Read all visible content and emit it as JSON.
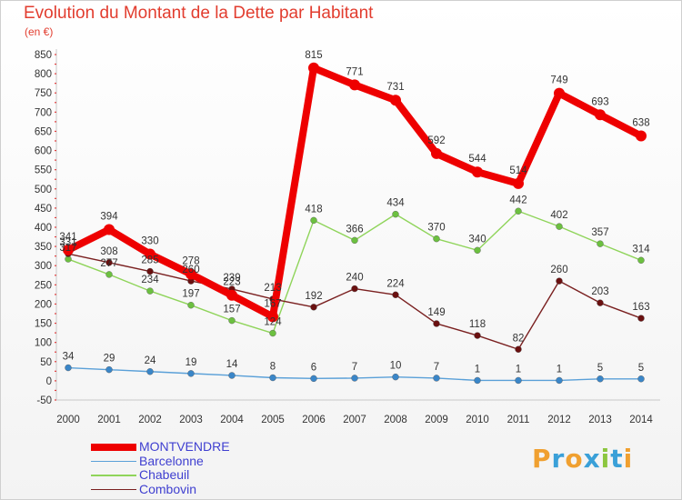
{
  "title": "Evolution du Montant de la Dette par Habitant",
  "subtitle": "(en €)",
  "logo": [
    "P",
    "r",
    "o",
    "x",
    "i",
    "t",
    "i"
  ],
  "logo_colors": [
    "#f0a030",
    "#3aa0d8",
    "#f0a030",
    "#3aa0d8",
    "#8cc63f",
    "#3aa0d8",
    "#f0a030"
  ],
  "chart_data": {
    "type": "line",
    "x": [
      "2000",
      "2001",
      "2002",
      "2003",
      "2004",
      "2005",
      "2006",
      "2007",
      "2008",
      "2009",
      "2010",
      "2011",
      "2012",
      "2013",
      "2014"
    ],
    "ylim": [
      -50,
      850
    ],
    "yticks": [
      "-50",
      "0",
      "50",
      "100",
      "150",
      "200",
      "250",
      "300",
      "350",
      "400",
      "450",
      "500",
      "550",
      "600",
      "650",
      "700",
      "750",
      "800",
      "850"
    ],
    "grid": false,
    "legend_position": "bottom-left",
    "series": [
      {
        "name": "MONTVENDRE",
        "color": "#ee0000",
        "point_color": "#ee0000",
        "values": [
          341,
          394,
          330,
          278,
          223,
          167,
          815,
          771,
          731,
          592,
          544,
          514,
          749,
          693,
          638
        ],
        "labels": [
          "341",
          "394",
          "330",
          "278",
          "223",
          "167",
          "815",
          "771",
          "731",
          "592",
          "544",
          "514",
          "749",
          "693",
          "638"
        ]
      },
      {
        "name": "Barcelonne",
        "color": "#5aa0d8",
        "point_color": "#3a86c8",
        "values": [
          34,
          29,
          24,
          19,
          14,
          8,
          6,
          7,
          10,
          7,
          1,
          1,
          1,
          5,
          5
        ],
        "labels": [
          "34",
          "29",
          "24",
          "19",
          "14",
          "8",
          "6",
          "7",
          "10",
          "7",
          "1",
          "1",
          "1",
          "5",
          "5"
        ]
      },
      {
        "name": "Chabeuil",
        "color": "#8fd45a",
        "point_color": "#6cc040",
        "values": [
          317,
          277,
          234,
          197,
          157,
          124,
          418,
          366,
          434,
          370,
          340,
          442,
          402,
          357,
          314
        ],
        "labels": [
          "317",
          "277",
          "234",
          "197",
          "157",
          "124",
          "418",
          "366",
          "434",
          "370",
          "340",
          "442",
          "402",
          "357",
          "314"
        ]
      },
      {
        "name": "Combovin",
        "color": "#7a2020",
        "point_color": "#6a1010",
        "values": [
          331,
          308,
          285,
          260,
          239,
          213,
          192,
          240,
          224,
          149,
          118,
          82,
          260,
          203,
          163
        ],
        "labels": [
          "331",
          "308",
          "285",
          "260",
          "239",
          "213",
          "192",
          "240",
          "224",
          "149",
          "118",
          "82",
          "260",
          "203",
          "163"
        ]
      }
    ]
  }
}
